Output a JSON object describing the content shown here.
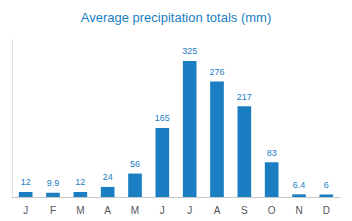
{
  "chart_data": {
    "type": "bar",
    "title": "Average precipitation totals (mm)",
    "categories": [
      "J",
      "F",
      "M",
      "A",
      "M",
      "J",
      "J",
      "A",
      "S",
      "O",
      "N",
      "D"
    ],
    "values": [
      12,
      9.9,
      12,
      24,
      56,
      165,
      325,
      276,
      217,
      83,
      6.4,
      6
    ],
    "color": "#1b7ec2",
    "ylim": [
      0,
      375
    ],
    "grid": false,
    "data_labels": true,
    "tick_labels": "x"
  }
}
